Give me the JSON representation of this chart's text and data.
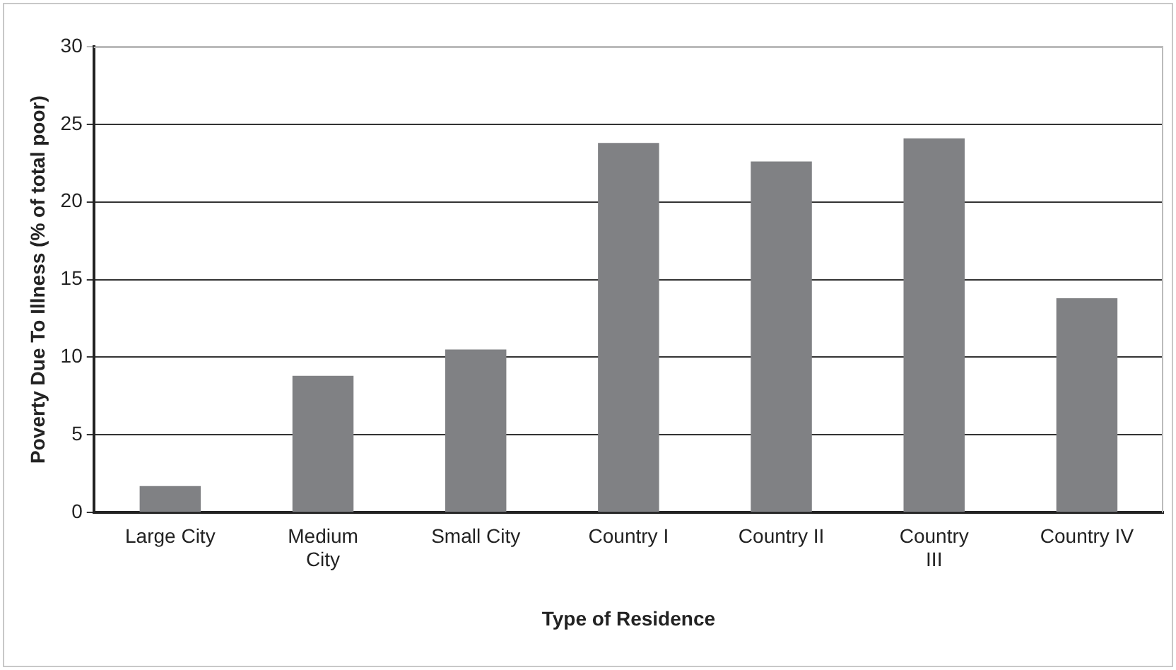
{
  "chart_data": {
    "type": "bar",
    "xlabel": "Type of Residence",
    "ylabel": "Poverty Due To Illness (% of total poor)",
    "categories": [
      "Large City",
      "Medium City",
      "Small City",
      "Country I",
      "Country II",
      "Country III",
      "Country IV"
    ],
    "values": [
      1.7,
      8.8,
      10.5,
      23.8,
      22.6,
      24.1,
      13.8
    ],
    "color": "#808184",
    "ylim": [
      0,
      30
    ],
    "yticks": [
      0,
      5,
      10,
      15,
      20,
      25,
      30
    ],
    "grid": "y",
    "legend": false
  }
}
